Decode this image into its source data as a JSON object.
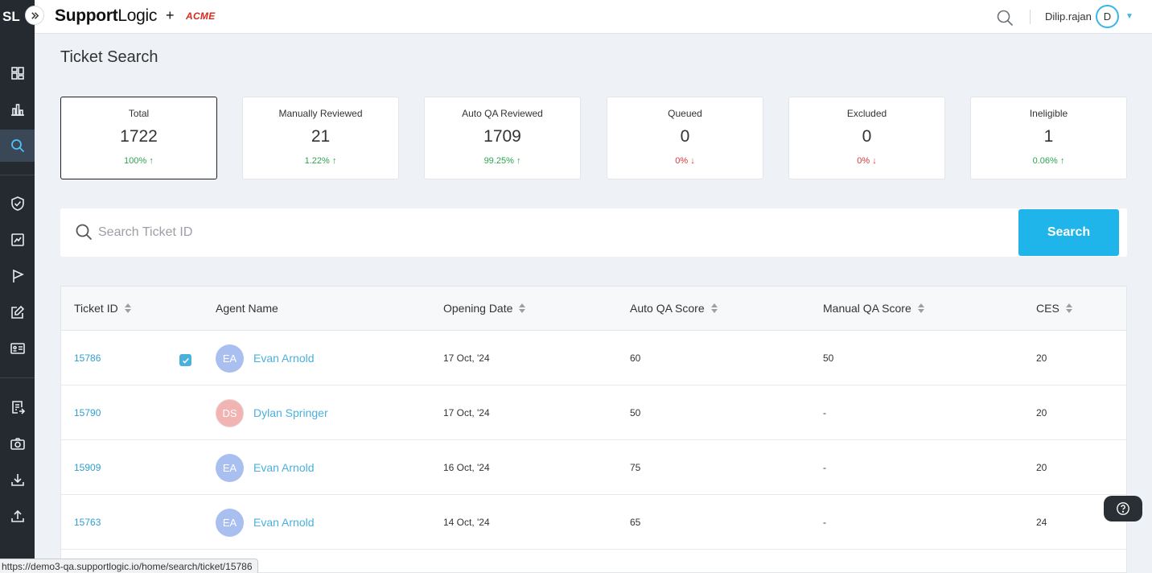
{
  "app": {
    "logo_short": "SL",
    "brand_prefix": "Support",
    "brand_suffix": "Logic",
    "plus": "+",
    "partner": "ACME"
  },
  "header": {
    "username": "Dilip.rajan",
    "avatar_initial": "D"
  },
  "sidebar": {
    "items": [
      {
        "icon": "dashboard-icon",
        "active": false
      },
      {
        "icon": "analytics-icon",
        "active": false
      },
      {
        "icon": "search-icon",
        "active": true
      },
      {
        "icon": "shield-check-icon",
        "active": false
      },
      {
        "icon": "report-icon",
        "active": false
      },
      {
        "icon": "flag-icon",
        "active": false
      },
      {
        "icon": "edit-icon",
        "active": false
      },
      {
        "icon": "id-card-icon",
        "active": false
      },
      {
        "icon": "notes-icon",
        "active": false
      },
      {
        "icon": "camera-icon",
        "active": false
      },
      {
        "icon": "download-icon",
        "active": false
      },
      {
        "icon": "upload-icon",
        "active": false
      }
    ]
  },
  "page": {
    "title": "Ticket Search"
  },
  "cards": [
    {
      "label": "Total",
      "value": "1722",
      "change": "100%",
      "trend": "up",
      "selected": true
    },
    {
      "label": "Manually Reviewed",
      "value": "21",
      "change": "1.22%",
      "trend": "up",
      "selected": false
    },
    {
      "label": "Auto QA Reviewed",
      "value": "1709",
      "change": "99.25%",
      "trend": "up",
      "selected": false
    },
    {
      "label": "Queued",
      "value": "0",
      "change": "0%",
      "trend": "down",
      "selected": false
    },
    {
      "label": "Excluded",
      "value": "0",
      "change": "0%",
      "trend": "down",
      "selected": false
    },
    {
      "label": "Ineligible",
      "value": "1",
      "change": "0.06%",
      "trend": "up",
      "selected": false
    }
  ],
  "search": {
    "placeholder": "Search Ticket ID",
    "value": "",
    "button_label": "Search"
  },
  "table": {
    "columns": [
      "Ticket ID",
      "Agent Name",
      "Opening Date",
      "Auto QA Score",
      "Manual QA Score",
      "CES"
    ],
    "rows": [
      {
        "ticket_id": "15786",
        "checked": true,
        "initials": "EA",
        "agent": "Evan Arnold",
        "date": "17 Oct, '24",
        "auto_qa": "60",
        "manual_qa": "50",
        "ces": "20"
      },
      {
        "ticket_id": "15790",
        "checked": false,
        "initials": "DS",
        "agent": "Dylan Springer",
        "date": "17 Oct, '24",
        "auto_qa": "50",
        "manual_qa": "-",
        "ces": "20"
      },
      {
        "ticket_id": "15909",
        "checked": false,
        "initials": "EA",
        "agent": "Evan Arnold",
        "date": "16 Oct, '24",
        "auto_qa": "75",
        "manual_qa": "-",
        "ces": "20"
      },
      {
        "ticket_id": "15763",
        "checked": false,
        "initials": "EA",
        "agent": "Evan Arnold",
        "date": "14 Oct, '24",
        "auto_qa": "65",
        "manual_qa": "-",
        "ces": "24"
      }
    ]
  },
  "status_bar": {
    "url": "https://demo3-qa.supportlogic.io/home/search/ticket/15786"
  },
  "colors": {
    "accent": "#1fb5ea",
    "up": "#2ea44f",
    "down": "#d9383a",
    "avatar_ea": "#a9bff0",
    "avatar_ds": "#f2b3b3"
  }
}
